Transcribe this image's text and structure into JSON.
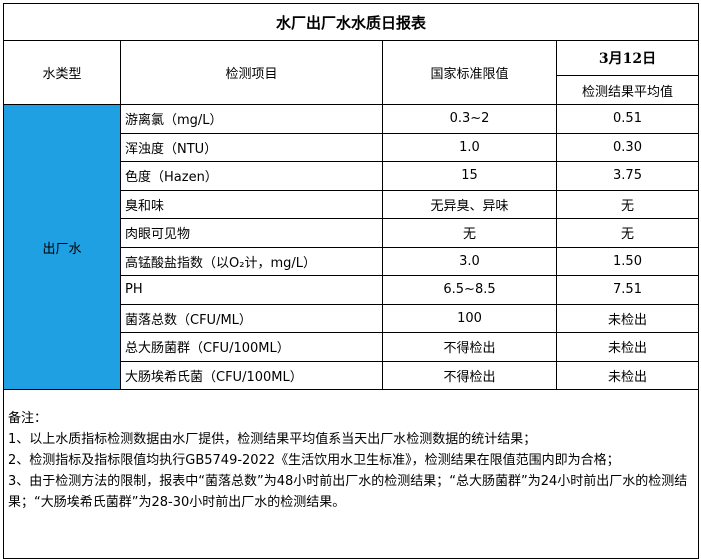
{
  "title": "水厂出厂水水质日报表",
  "header": {
    "type": "水类型",
    "item": "检测项目",
    "standard": "国家标准限值",
    "date": "3月12日",
    "result": "检测结果平均值"
  },
  "group": "出厂水",
  "rows": [
    [
      "游离氯（mg/L）",
      "0.3~2",
      "0.51"
    ],
    [
      "浑浊度（NTU）",
      "1.0",
      "0.30"
    ],
    [
      "色度（Hazen）",
      "15",
      "3.75"
    ],
    [
      "臭和味",
      "无异臭、异味",
      "无"
    ],
    [
      "肉眼可见物",
      "无",
      "无"
    ],
    [
      "高锰酸盐指数（以O₂计，mg/L）",
      "3.0",
      "1.50"
    ],
    [
      "PH",
      "6.5~8.5",
      "7.51"
    ],
    [
      "菌落总数（CFU/ML）",
      "100",
      "未检出"
    ],
    [
      "总大肠菌群（CFU/100ML）",
      "不得检出",
      "未检出"
    ],
    [
      "大肠埃希氏菌（CFU/100ML）",
      "不得检出",
      "未检出"
    ]
  ],
  "notes": {
    "label": "备注：",
    "items": [
      "1、以上水质指标检测数据由水厂提供，检测结果平均值系当天出厂水检测数据的统计结果；",
      "2、检测指标及指标限值均执行GB5749-2022《生活饮用水卫生标准》，检测结果在限值范围内即为合格；",
      "3、由于检测方法的限制，报表中“菌落总数”为48小时前出厂水的检测结果；“总大肠菌群”为24小时前出厂水的检测结果；“大肠埃希氏菌群”为28-30小时前出厂水的检测结果。"
    ]
  }
}
